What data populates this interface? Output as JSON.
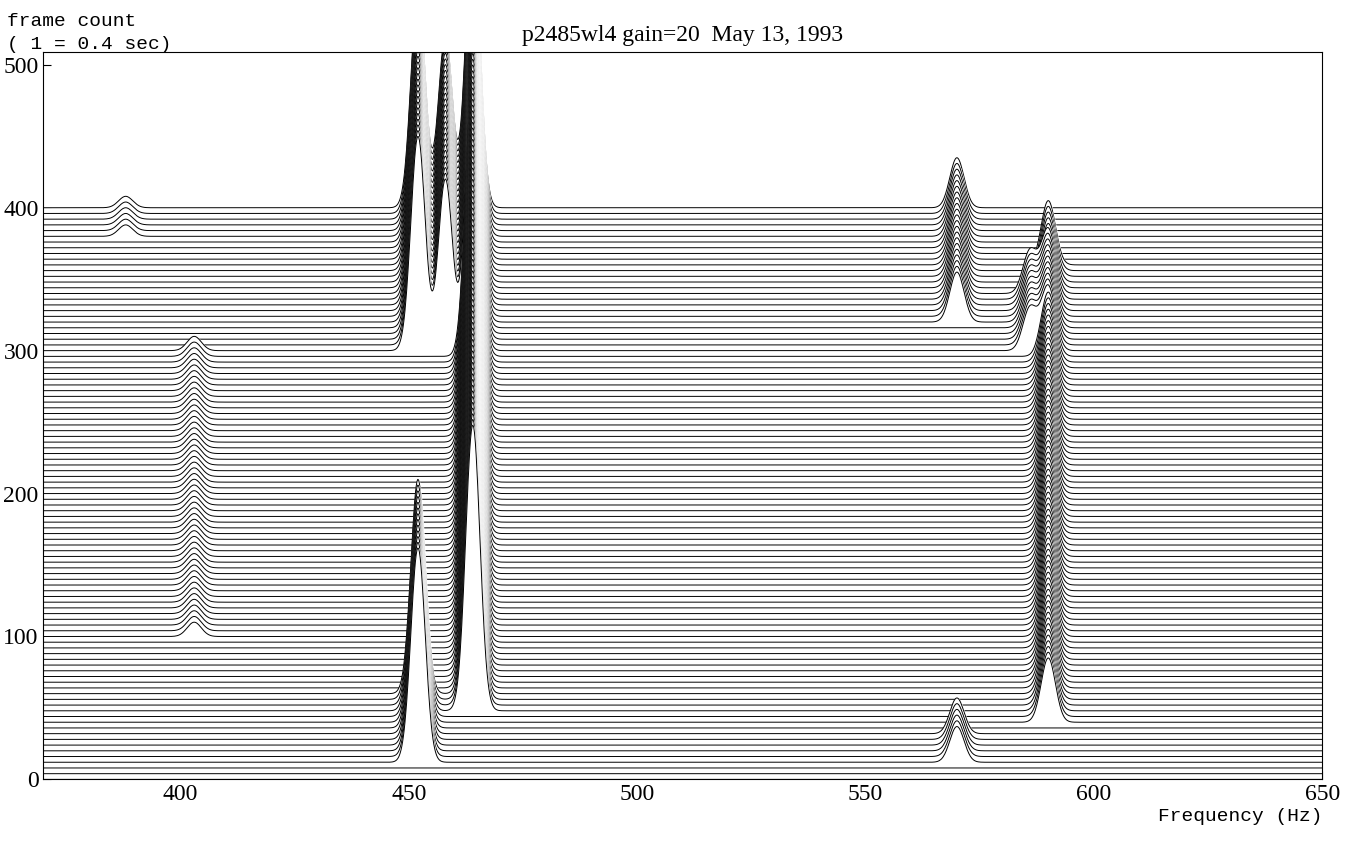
{
  "chart_data": {
    "type": "waterfall",
    "title": "p2485wl4 gain=20  May 13, 1993",
    "ylabel": "frame count",
    "annotation": "( 1 = 0.4 sec)",
    "xlabel": "Frequency (Hz)",
    "xlim": [
      370,
      650
    ],
    "ylim": [
      0,
      509
    ],
    "xticks": [
      400,
      450,
      500,
      550,
      600,
      650
    ],
    "yticks": [
      0,
      100,
      200,
      300,
      400,
      500
    ],
    "color": "#000000",
    "frames": {
      "start": 0,
      "stop": 400,
      "step": 4
    },
    "tones": [
      {
        "frequency": 452,
        "frames": [
          12,
          60
        ],
        "amplitude": 150
      },
      {
        "frequency": 464,
        "frames": [
          48,
          400
        ],
        "amplitude": 200
      },
      {
        "frequency": 452,
        "frames": [
          300,
          400
        ],
        "amplitude": 150
      },
      {
        "frequency": 458,
        "frames": [
          300,
          400
        ],
        "amplitude": 120
      },
      {
        "frequency": 570,
        "frames": [
          12,
          32
        ],
        "amplitude": 25
      },
      {
        "frequency": 570,
        "frames": [
          320,
          400
        ],
        "amplitude": 35
      },
      {
        "frequency": 586,
        "frames": [
          300,
          340
        ],
        "amplitude": 30
      },
      {
        "frequency": 590,
        "frames": [
          40,
          360
        ],
        "amplitude": 45
      },
      {
        "frequency": 403,
        "frames": [
          100,
          300
        ],
        "amplitude": 10
      },
      {
        "frequency": 388,
        "frames": [
          380,
          400
        ],
        "amplitude": 8
      }
    ]
  }
}
